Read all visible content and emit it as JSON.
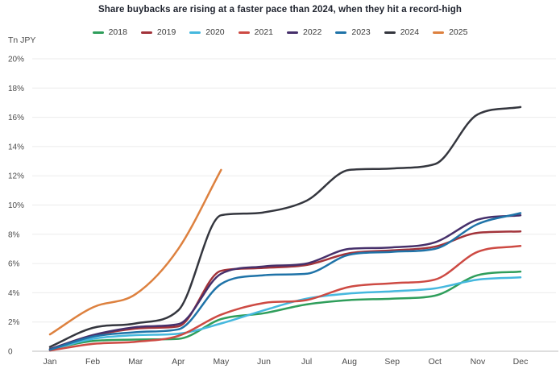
{
  "chart_data": {
    "type": "line",
    "title": "Share buybacks are rising at a faster pace than 2024, when they hit a record-high",
    "unit": "Tn JPY",
    "x": [
      "Jan",
      "Feb",
      "Mar",
      "Apr",
      "May",
      "Jun",
      "Jul",
      "Aug",
      "Sep",
      "Oct",
      "Nov",
      "Dec"
    ],
    "ylim": [
      0,
      20
    ],
    "ytick_step": 2,
    "ytick_labels": [
      "0",
      "2%",
      "4%",
      "6%",
      "8%",
      "10%",
      "12%",
      "14%",
      "16%",
      "18%",
      "20%"
    ],
    "grid": true,
    "legend_position": "top",
    "series": [
      {
        "name": "2018",
        "color": "#2f9e5b",
        "values": [
          0.15,
          0.7,
          0.8,
          0.85,
          2.2,
          2.6,
          3.2,
          3.5,
          3.6,
          3.8,
          5.2,
          5.45
        ]
      },
      {
        "name": "2019",
        "color": "#a2333a",
        "values": [
          0.1,
          1.05,
          1.55,
          1.7,
          5.5,
          5.7,
          5.9,
          6.7,
          6.9,
          7.15,
          8.1,
          8.2
        ]
      },
      {
        "name": "2020",
        "color": "#45b8de",
        "values": [
          0.1,
          0.85,
          1.1,
          1.2,
          1.9,
          2.8,
          3.6,
          3.95,
          4.1,
          4.3,
          4.9,
          5.05
        ]
      },
      {
        "name": "2021",
        "color": "#cd4a43",
        "values": [
          0.05,
          0.5,
          0.65,
          1.05,
          2.5,
          3.3,
          3.5,
          4.4,
          4.65,
          4.9,
          6.8,
          7.2
        ]
      },
      {
        "name": "2022",
        "color": "#46306b",
        "values": [
          0.15,
          1.1,
          1.65,
          1.85,
          5.3,
          5.8,
          6.0,
          7.0,
          7.1,
          7.45,
          9.0,
          9.3
        ]
      },
      {
        "name": "2023",
        "color": "#1f73a8",
        "values": [
          0.1,
          1.0,
          1.3,
          1.5,
          4.6,
          5.2,
          5.3,
          6.6,
          6.8,
          7.0,
          8.7,
          9.45
        ]
      },
      {
        "name": "2024",
        "color": "#34363e",
        "values": [
          0.3,
          1.6,
          1.9,
          2.8,
          9.3,
          9.5,
          10.3,
          12.4,
          12.5,
          12.8,
          16.2,
          16.7
        ]
      },
      {
        "name": "2025",
        "color": "#dd813f",
        "values": [
          1.15,
          3.0,
          3.9,
          7.0,
          12.4,
          null,
          null,
          null,
          null,
          null,
          null,
          null
        ]
      }
    ],
    "colors": {
      "title": "#20242f",
      "axis_text": "#4c4c4c",
      "gridline": "#ebebeb",
      "axis_line": "#c9c9c9",
      "background": "#ffffff"
    }
  }
}
